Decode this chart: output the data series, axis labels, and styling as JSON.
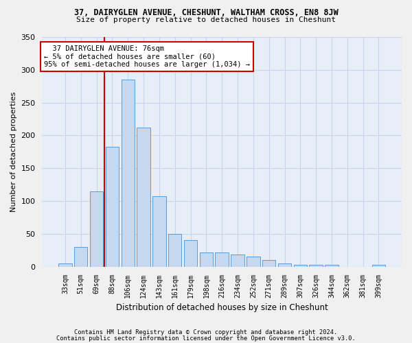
{
  "title1": "37, DAIRYGLEN AVENUE, CHESHUNT, WALTHAM CROSS, EN8 8JW",
  "title2": "Size of property relative to detached houses in Cheshunt",
  "xlabel": "Distribution of detached houses by size in Cheshunt",
  "ylabel": "Number of detached properties",
  "categories": [
    "33sqm",
    "51sqm",
    "69sqm",
    "88sqm",
    "106sqm",
    "124sqm",
    "143sqm",
    "161sqm",
    "179sqm",
    "198sqm",
    "216sqm",
    "234sqm",
    "252sqm",
    "271sqm",
    "289sqm",
    "307sqm",
    "326sqm",
    "344sqm",
    "362sqm",
    "381sqm",
    "399sqm"
  ],
  "values": [
    5,
    30,
    115,
    183,
    285,
    212,
    107,
    50,
    40,
    22,
    22,
    18,
    15,
    10,
    5,
    3,
    3,
    3,
    0,
    0,
    3
  ],
  "bar_color": "#c5d8f0",
  "bar_edge_color": "#5b9bd5",
  "grid_color": "#c8d4e8",
  "background_color": "#e8eef8",
  "fig_background": "#f0f0f0",
  "annotation_text": "  37 DAIRYGLEN AVENUE: 76sqm\n← 5% of detached houses are smaller (60)\n95% of semi-detached houses are larger (1,034) →",
  "vline_color": "#cc0000",
  "annotation_box_color": "#ffffff",
  "annotation_box_edge": "#cc0000",
  "footnote1": "Contains HM Land Registry data © Crown copyright and database right 2024.",
  "footnote2": "Contains public sector information licensed under the Open Government Licence v3.0.",
  "ylim": [
    0,
    350
  ],
  "yticks": [
    0,
    50,
    100,
    150,
    200,
    250,
    300,
    350
  ],
  "vline_pos": 2.52
}
